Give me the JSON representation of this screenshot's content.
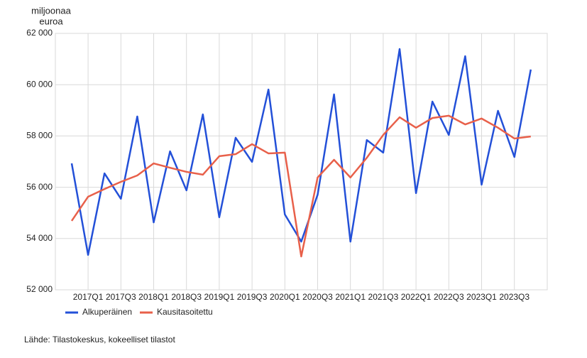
{
  "chart_data": {
    "type": "line",
    "y_label": [
      "miljoonaa",
      "euroa"
    ],
    "categories": [
      null,
      "2017Q1",
      null,
      "2017Q3",
      null,
      "2018Q1",
      null,
      "2018Q3",
      null,
      "2019Q1",
      null,
      "2019Q3",
      null,
      "2020Q1",
      null,
      "2020Q3",
      null,
      "2021Q1",
      null,
      "2021Q3",
      null,
      "2022Q1",
      null,
      "2022Q3",
      null,
      "2023Q1",
      null,
      "2023Q3",
      null
    ],
    "series": [
      {
        "name": "Alkuperäinen",
        "color": "#2350d8",
        "values": [
          56930,
          53360,
          56540,
          55550,
          58760,
          54630,
          57400,
          55880,
          58840,
          54830,
          57930,
          56990,
          59810,
          54940,
          53880,
          55710,
          59620,
          53880,
          57840,
          57350,
          61390,
          55770,
          59340,
          58040,
          61110,
          56100,
          58980,
          57180,
          60590
        ]
      },
      {
        "name": "Kausitasoitettu",
        "color": "#e8604a",
        "values": [
          54690,
          55630,
          55930,
          56210,
          56460,
          56930,
          56760,
          56600,
          56490,
          57210,
          57290,
          57680,
          57320,
          57350,
          53300,
          56380,
          57070,
          56380,
          57150,
          58040,
          58730,
          58320,
          58700,
          58790,
          58450,
          58680,
          58320,
          57900,
          57980
        ]
      }
    ],
    "ylim": [
      52000,
      62000
    ],
    "yticks": [
      {
        "value": 52000,
        "label": "52 000"
      },
      {
        "value": 54000,
        "label": "54 000"
      },
      {
        "value": 56000,
        "label": "56 000"
      },
      {
        "value": 58000,
        "label": "58 000"
      },
      {
        "value": 60000,
        "label": "60 000"
      },
      {
        "value": 62000,
        "label": "62 000"
      }
    ],
    "grid": true,
    "source": "Lähde: Tilastokeskus, kokeelliset tilastot"
  }
}
